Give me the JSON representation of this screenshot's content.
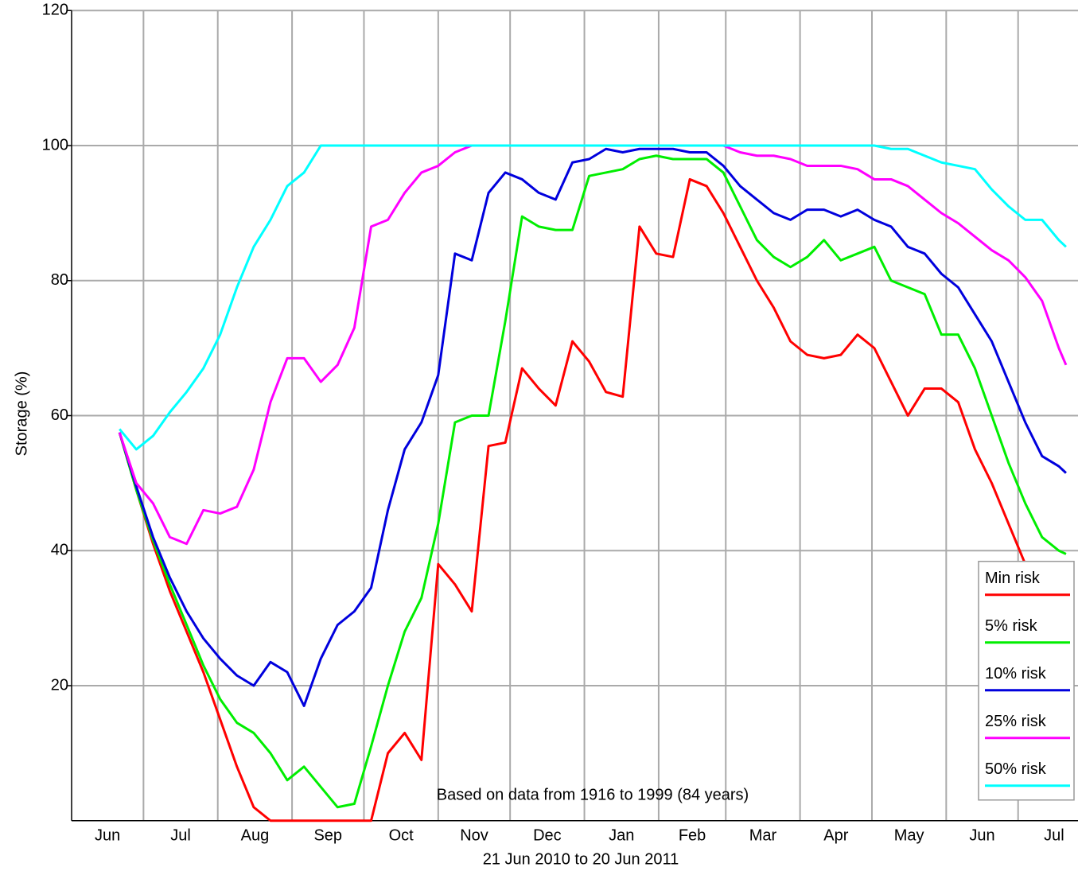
{
  "chart_data": {
    "type": "line",
    "y_label": "Storage (%)",
    "x_label": "21 Jun 2010 to 20 Jun 2011",
    "annotation": "Based on data from 1916 to 1999 (84 years)",
    "x": [
      20,
      27,
      34,
      41,
      48,
      55,
      62,
      69,
      76,
      83,
      90,
      97,
      104,
      111,
      118,
      125,
      132,
      139,
      146,
      153,
      160,
      167,
      174,
      181,
      188,
      195,
      202,
      209,
      216,
      223,
      230,
      237,
      244,
      251,
      258,
      265,
      272,
      279,
      286,
      293,
      300,
      307,
      314,
      321,
      328,
      335,
      342,
      349,
      356,
      363,
      370,
      377,
      384,
      391,
      398,
      405,
      412,
      415
    ],
    "xlim": [
      0,
      420
    ],
    "xticks": [
      {
        "value": 15,
        "label": "Jun"
      },
      {
        "value": 45.5,
        "label": "Jul"
      },
      {
        "value": 76.5,
        "label": "Aug"
      },
      {
        "value": 107,
        "label": "Sep"
      },
      {
        "value": 137.5,
        "label": "Oct"
      },
      {
        "value": 168,
        "label": "Nov"
      },
      {
        "value": 198.5,
        "label": "Dec"
      },
      {
        "value": 229.5,
        "label": "Jan"
      },
      {
        "value": 259,
        "label": "Feb"
      },
      {
        "value": 288.5,
        "label": "Mar"
      },
      {
        "value": 319,
        "label": "Apr"
      },
      {
        "value": 349.5,
        "label": "May"
      },
      {
        "value": 380,
        "label": "Jun"
      },
      {
        "value": 410,
        "label": "Jul"
      }
    ],
    "xgrid": [
      30,
      61,
      92,
      122,
      153,
      183,
      214,
      245,
      273,
      304,
      334,
      365,
      395
    ],
    "ylim": [
      0,
      120
    ],
    "yticks": [
      20,
      40,
      60,
      80,
      100,
      120
    ],
    "grid": true,
    "legend": "lower right",
    "series": [
      {
        "name": "Min risk",
        "color": "#ff0000",
        "values": [
          57.5,
          49,
          41,
          34,
          28,
          22,
          15,
          8,
          2,
          0,
          0,
          0,
          0,
          0,
          0,
          0,
          10,
          13,
          9,
          38,
          35,
          31,
          55.5,
          56,
          67,
          64,
          61.5,
          71,
          68,
          63.5,
          62.8,
          88,
          84,
          83.5,
          95,
          94,
          90,
          85,
          80,
          76,
          71,
          69,
          68.5,
          69,
          72,
          70,
          65,
          60,
          64,
          64,
          62,
          55,
          50,
          44,
          38,
          33,
          27,
          26
        ]
      },
      {
        "name": "5% risk",
        "color": "#00ee00",
        "values": [
          57.5,
          49,
          41.5,
          35,
          29,
          23,
          18,
          14.5,
          13,
          10,
          6,
          8,
          5,
          2,
          2.5,
          11,
          20,
          28,
          33,
          44,
          59,
          60,
          60,
          74,
          89.5,
          88,
          87.5,
          87.5,
          95.5,
          96,
          96.5,
          98,
          98.5,
          98,
          98,
          98,
          96,
          91,
          86,
          83.5,
          82,
          83.5,
          86,
          83,
          84,
          85,
          80,
          79,
          78,
          72,
          72,
          67,
          60,
          53,
          47,
          42,
          40,
          39.5
        ]
      },
      {
        "name": "10% risk",
        "color": "#0000dd",
        "values": [
          57.5,
          49.5,
          42,
          36,
          31,
          27,
          24,
          21.5,
          20,
          23.5,
          22,
          17,
          24,
          29,
          31,
          34.5,
          46,
          55,
          59,
          66,
          84,
          83,
          93,
          96,
          95,
          93,
          92,
          97.5,
          98,
          99.5,
          99,
          99.5,
          99.5,
          99.5,
          99,
          99,
          97,
          94,
          92,
          90,
          89,
          90.5,
          90.5,
          89.5,
          90.5,
          89,
          88,
          85,
          84,
          81,
          79,
          75,
          71,
          65,
          59,
          54,
          52.5,
          51.5
        ]
      },
      {
        "name": "25% risk",
        "color": "#ff00ff",
        "values": [
          57.5,
          50,
          47,
          42,
          41,
          46,
          45.5,
          46.5,
          52,
          62,
          68.5,
          68.5,
          65,
          67.5,
          73,
          88,
          89,
          93,
          96,
          97,
          99,
          100,
          100,
          100,
          100,
          100,
          100,
          100,
          100,
          100,
          100,
          100,
          100,
          100,
          100,
          100,
          100,
          99,
          98.5,
          98.5,
          98,
          97,
          97,
          97,
          96.5,
          95,
          95,
          94,
          92,
          90,
          88.5,
          86.5,
          84.5,
          83,
          80.5,
          77,
          70,
          67.5
        ]
      },
      {
        "name": "50% risk",
        "color": "#00ffff",
        "values": [
          58,
          55,
          57,
          60.5,
          63.5,
          67,
          72,
          79,
          85,
          89,
          94,
          96,
          100,
          100,
          100,
          100,
          100,
          100,
          100,
          100,
          100,
          100,
          100,
          100,
          100,
          100,
          100,
          100,
          100,
          100,
          100,
          100,
          100,
          100,
          100,
          100,
          100,
          100,
          100,
          100,
          100,
          100,
          100,
          100,
          100,
          100,
          99.5,
          99.5,
          98.5,
          97.5,
          97,
          96.5,
          93.5,
          91,
          89,
          89,
          86,
          85
        ]
      }
    ]
  }
}
